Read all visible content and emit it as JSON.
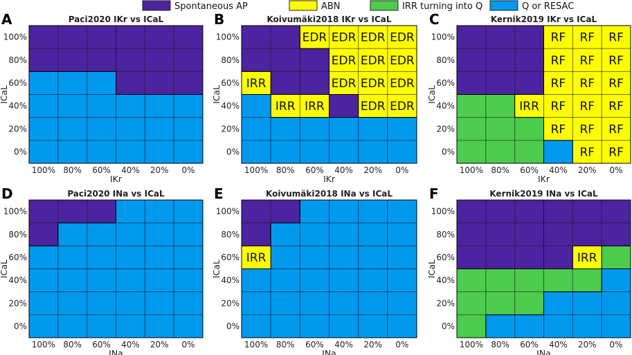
{
  "legend": [
    {
      "key": "S",
      "label": "Spontaneous AP",
      "color": "#4c249f"
    },
    {
      "key": "A",
      "label": "ABN",
      "color": "#fdfd00"
    },
    {
      "key": "I",
      "label": "IRR turning into Q",
      "color": "#4ccb4c"
    },
    {
      "key": "Q",
      "label": "Q or RESAC",
      "color": "#0099ee"
    }
  ],
  "chart_data": [
    {
      "type": "heatmap",
      "letter": "A",
      "title": "Paci2020 IKr vs ICaL",
      "xlabel": "IKr",
      "ylabel": "ICaL",
      "x": [
        "100%",
        "80%",
        "60%",
        "40%",
        "20%",
        "0%"
      ],
      "y": [
        "100%",
        "80%",
        "60%",
        "40%",
        "20%",
        "0%"
      ],
      "cells": [
        [
          "S",
          "S",
          "S",
          "S",
          "S",
          "S"
        ],
        [
          "S",
          "S",
          "S",
          "S",
          "S",
          "S"
        ],
        [
          "Q",
          "Q",
          "Q",
          "S",
          "S",
          "S"
        ],
        [
          "Q",
          "Q",
          "Q",
          "Q",
          "Q",
          "Q"
        ],
        [
          "Q",
          "Q",
          "Q",
          "Q",
          "Q",
          "Q"
        ],
        [
          "Q",
          "Q",
          "Q",
          "Q",
          "Q",
          "Q"
        ]
      ],
      "labels": [
        [
          "",
          "",
          "",
          "",
          "",
          ""
        ],
        [
          "",
          "",
          "",
          "",
          "",
          ""
        ],
        [
          "",
          "",
          "",
          "",
          "",
          ""
        ],
        [
          "",
          "",
          "",
          "",
          "",
          ""
        ],
        [
          "",
          "",
          "",
          "",
          "",
          ""
        ],
        [
          "",
          "",
          "",
          "",
          "",
          ""
        ]
      ]
    },
    {
      "type": "heatmap",
      "letter": "B",
      "title": "Koivumäki2018 IKr vs ICaL",
      "xlabel": "IKr",
      "ylabel": "ICaL",
      "x": [
        "100%",
        "80%",
        "60%",
        "40%",
        "20%",
        "0%"
      ],
      "y": [
        "100%",
        "80%",
        "60%",
        "40%",
        "20%",
        "0%"
      ],
      "cells": [
        [
          "S",
          "S",
          "A",
          "A",
          "A",
          "A"
        ],
        [
          "S",
          "S",
          "S",
          "A",
          "A",
          "A"
        ],
        [
          "A",
          "S",
          "S",
          "A",
          "A",
          "A"
        ],
        [
          "Q",
          "A",
          "A",
          "S",
          "A",
          "A"
        ],
        [
          "Q",
          "Q",
          "Q",
          "Q",
          "Q",
          "Q"
        ],
        [
          "Q",
          "Q",
          "Q",
          "Q",
          "Q",
          "Q"
        ]
      ],
      "labels": [
        [
          "",
          "",
          "EDR",
          "EDR",
          "EDR",
          "EDR"
        ],
        [
          "",
          "",
          "",
          "EDR",
          "EDR",
          "EDR"
        ],
        [
          "IRR",
          "",
          "",
          "EDR",
          "EDR",
          "EDR"
        ],
        [
          "",
          "IRR",
          "IRR",
          "",
          "EDR",
          "EDR"
        ],
        [
          "",
          "",
          "",
          "",
          "",
          ""
        ],
        [
          "",
          "",
          "",
          "",
          "",
          ""
        ]
      ]
    },
    {
      "type": "heatmap",
      "letter": "C",
      "title": "Kernik2019 IKr vs ICaL",
      "xlabel": "IKr",
      "ylabel": "ICaL",
      "x": [
        "100%",
        "80%",
        "60%",
        "40%",
        "20%",
        "0%"
      ],
      "y": [
        "100%",
        "80%",
        "60%",
        "40%",
        "20%",
        "0%"
      ],
      "cells": [
        [
          "S",
          "S",
          "S",
          "A",
          "A",
          "A"
        ],
        [
          "S",
          "S",
          "S",
          "A",
          "A",
          "A"
        ],
        [
          "S",
          "S",
          "S",
          "A",
          "A",
          "A"
        ],
        [
          "I",
          "I",
          "A",
          "A",
          "A",
          "A"
        ],
        [
          "I",
          "I",
          "I",
          "A",
          "A",
          "A"
        ],
        [
          "I",
          "I",
          "I",
          "Q",
          "A",
          "A"
        ]
      ],
      "labels": [
        [
          "",
          "",
          "",
          "RF",
          "RF",
          "RF"
        ],
        [
          "",
          "",
          "",
          "RF",
          "RF",
          "RF"
        ],
        [
          "",
          "",
          "",
          "RF",
          "RF",
          "RF"
        ],
        [
          "",
          "",
          "IRR",
          "RF",
          "RF",
          "RF"
        ],
        [
          "",
          "",
          "",
          "RF",
          "RF",
          "RF"
        ],
        [
          "",
          "",
          "",
          "",
          "RF",
          "RF"
        ]
      ]
    },
    {
      "type": "heatmap",
      "letter": "D",
      "title": "Paci2020 INa vs ICaL",
      "xlabel": "INa",
      "ylabel": "ICaL",
      "x": [
        "100%",
        "80%",
        "60%",
        "40%",
        "20%",
        "0%"
      ],
      "y": [
        "100%",
        "80%",
        "60%",
        "40%",
        "20%",
        "0%"
      ],
      "cells": [
        [
          "S",
          "S",
          "S",
          "Q",
          "Q",
          "Q"
        ],
        [
          "S",
          "Q",
          "Q",
          "Q",
          "Q",
          "Q"
        ],
        [
          "Q",
          "Q",
          "Q",
          "Q",
          "Q",
          "Q"
        ],
        [
          "Q",
          "Q",
          "Q",
          "Q",
          "Q",
          "Q"
        ],
        [
          "Q",
          "Q",
          "Q",
          "Q",
          "Q",
          "Q"
        ],
        [
          "Q",
          "Q",
          "Q",
          "Q",
          "Q",
          "Q"
        ]
      ],
      "labels": [
        [
          "",
          "",
          "",
          "",
          "",
          ""
        ],
        [
          "",
          "",
          "",
          "",
          "",
          ""
        ],
        [
          "",
          "",
          "",
          "",
          "",
          ""
        ],
        [
          "",
          "",
          "",
          "",
          "",
          ""
        ],
        [
          "",
          "",
          "",
          "",
          "",
          ""
        ],
        [
          "",
          "",
          "",
          "",
          "",
          ""
        ]
      ]
    },
    {
      "type": "heatmap",
      "letter": "E",
      "title": "Koivumäki2018 INa vs ICaL",
      "xlabel": "INa",
      "ylabel": "ICaL",
      "x": [
        "100%",
        "80%",
        "60%",
        "40%",
        "20%",
        "0%"
      ],
      "y": [
        "100%",
        "80%",
        "60%",
        "40%",
        "20%",
        "0%"
      ],
      "cells": [
        [
          "S",
          "S",
          "Q",
          "Q",
          "Q",
          "Q"
        ],
        [
          "S",
          "Q",
          "Q",
          "Q",
          "Q",
          "Q"
        ],
        [
          "A",
          "Q",
          "Q",
          "Q",
          "Q",
          "Q"
        ],
        [
          "Q",
          "Q",
          "Q",
          "Q",
          "Q",
          "Q"
        ],
        [
          "Q",
          "Q",
          "Q",
          "Q",
          "Q",
          "Q"
        ],
        [
          "Q",
          "Q",
          "Q",
          "Q",
          "Q",
          "Q"
        ]
      ],
      "labels": [
        [
          "",
          "",
          "",
          "",
          "",
          ""
        ],
        [
          "",
          "",
          "",
          "",
          "",
          ""
        ],
        [
          "IRR",
          "",
          "",
          "",
          "",
          ""
        ],
        [
          "",
          "",
          "",
          "",
          "",
          ""
        ],
        [
          "",
          "",
          "",
          "",
          "",
          ""
        ],
        [
          "",
          "",
          "",
          "",
          "",
          ""
        ]
      ]
    },
    {
      "type": "heatmap",
      "letter": "F",
      "title": "Kernik2019 INa vs ICaL",
      "xlabel": "INa",
      "ylabel": "ICaL",
      "x": [
        "100%",
        "80%",
        "60%",
        "40%",
        "20%",
        "0%"
      ],
      "y": [
        "100%",
        "80%",
        "60%",
        "40%",
        "20%",
        "0%"
      ],
      "cells": [
        [
          "S",
          "S",
          "S",
          "S",
          "S",
          "S"
        ],
        [
          "S",
          "S",
          "S",
          "S",
          "S",
          "S"
        ],
        [
          "S",
          "S",
          "S",
          "S",
          "A",
          "I"
        ],
        [
          "I",
          "I",
          "I",
          "I",
          "I",
          "Q"
        ],
        [
          "I",
          "I",
          "I",
          "Q",
          "Q",
          "Q"
        ],
        [
          "I",
          "Q",
          "Q",
          "Q",
          "Q",
          "Q"
        ]
      ],
      "labels": [
        [
          "",
          "",
          "",
          "",
          "",
          ""
        ],
        [
          "",
          "",
          "",
          "",
          "",
          ""
        ],
        [
          "",
          "",
          "",
          "",
          "IRR",
          ""
        ],
        [
          "",
          "",
          "",
          "",
          "",
          ""
        ],
        [
          "",
          "",
          "",
          "",
          "",
          ""
        ],
        [
          "",
          "",
          "",
          "",
          "",
          ""
        ]
      ]
    }
  ]
}
